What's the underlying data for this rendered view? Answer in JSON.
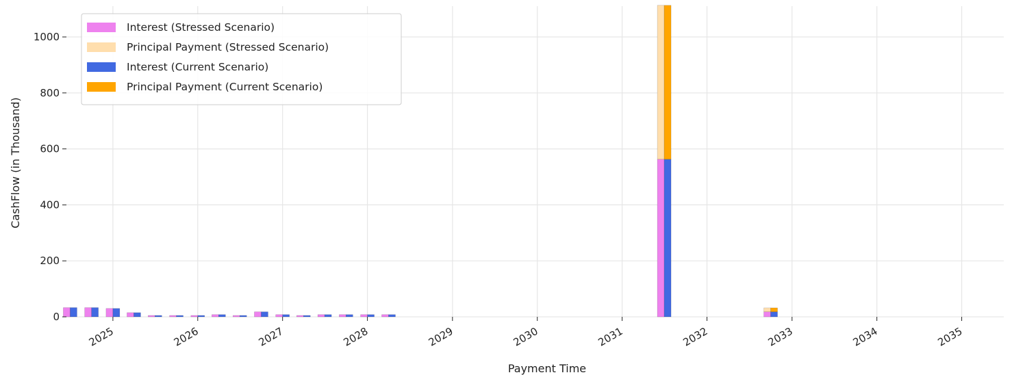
{
  "chart_data": {
    "type": "bar",
    "title": "",
    "xlabel": "Payment Time",
    "ylabel": "CashFlow (in Thousand)",
    "ylim": [
      0,
      1110
    ],
    "y_ticks": [
      0,
      200,
      400,
      600,
      800,
      1000
    ],
    "xlim": [
      "2024-06-15",
      "2035-07-01"
    ],
    "x_ticks": [
      "2025",
      "2026",
      "2027",
      "2028",
      "2029",
      "2030",
      "2031",
      "2032",
      "2033",
      "2034",
      "2035"
    ],
    "grid": true,
    "legend": "top-left",
    "bar_layout": "stacked, stressed left of current",
    "dates": [
      "2024-07-01",
      "2024-10-01",
      "2025-01-01",
      "2025-04-01",
      "2025-07-01",
      "2025-10-01",
      "2026-01-01",
      "2026-04-01",
      "2026-07-01",
      "2026-10-01",
      "2027-01-01",
      "2027-04-01",
      "2027-07-01",
      "2027-10-01",
      "2028-01-01",
      "2028-04-01",
      "2031-07-01",
      "2032-10-01"
    ],
    "series": [
      {
        "name": "Interest (Stressed Scenario)",
        "group": "stressed",
        "color": "#ee82ee",
        "values": [
          33,
          33,
          30,
          15,
          5,
          5,
          5,
          8,
          5,
          18,
          8,
          5,
          8,
          8,
          8,
          8,
          563,
          18
        ]
      },
      {
        "name": "Principal Payment (Stressed Scenario)",
        "group": "stressed",
        "color": "#ffdead",
        "values": [
          0,
          0,
          0,
          0,
          0,
          0,
          0,
          0,
          0,
          0,
          0,
          0,
          0,
          0,
          0,
          0,
          550,
          14
        ]
      },
      {
        "name": "Interest (Current Scenario)",
        "group": "current",
        "color": "#4169e1",
        "values": [
          33,
          33,
          30,
          15,
          5,
          5,
          5,
          8,
          5,
          18,
          8,
          5,
          8,
          8,
          8,
          8,
          563,
          18
        ]
      },
      {
        "name": "Principal Payment (Current Scenario)",
        "group": "current",
        "color": "#ffa500",
        "values": [
          0,
          0,
          0,
          0,
          0,
          0,
          0,
          0,
          0,
          0,
          0,
          0,
          0,
          0,
          0,
          0,
          550,
          14
        ]
      }
    ]
  }
}
